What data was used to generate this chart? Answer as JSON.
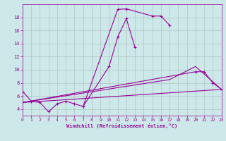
{
  "xlabel": "Windchill (Refroidissement éolien,°C)",
  "background_color": "#cce8e8",
  "grid_color": "#aabbbb",
  "line_color": "#990099",
  "xlim": [
    0,
    23
  ],
  "ylim": [
    3.0,
    20.0
  ],
  "xticks": [
    0,
    1,
    2,
    3,
    4,
    5,
    6,
    7,
    8,
    9,
    10,
    11,
    12,
    13,
    14,
    15,
    16,
    17,
    18,
    19,
    20,
    21,
    22,
    23
  ],
  "yticks": [
    4,
    6,
    8,
    10,
    12,
    14,
    16,
    18
  ],
  "line1_x": [
    0,
    1,
    2,
    3,
    4,
    5,
    6,
    7,
    11,
    12,
    15,
    16,
    17
  ],
  "line1_y": [
    6.7,
    5.2,
    5.0,
    3.6,
    4.8,
    5.2,
    4.8,
    4.4,
    19.2,
    19.3,
    18.2,
    18.2,
    16.8
  ],
  "line2_x": [
    7,
    10,
    11,
    12,
    13
  ],
  "line2_y": [
    4.4,
    10.5,
    15.0,
    17.8,
    13.4
  ],
  "line3_x": [
    0,
    23
  ],
  "line3_y": [
    5.0,
    7.0
  ],
  "line4_x": [
    0,
    20,
    21,
    22,
    23
  ],
  "line4_y": [
    5.0,
    9.7,
    9.7,
    8.0,
    7.0
  ],
  "line5_x": [
    0,
    17,
    20,
    23
  ],
  "line5_y": [
    5.0,
    8.5,
    10.5,
    7.0
  ]
}
